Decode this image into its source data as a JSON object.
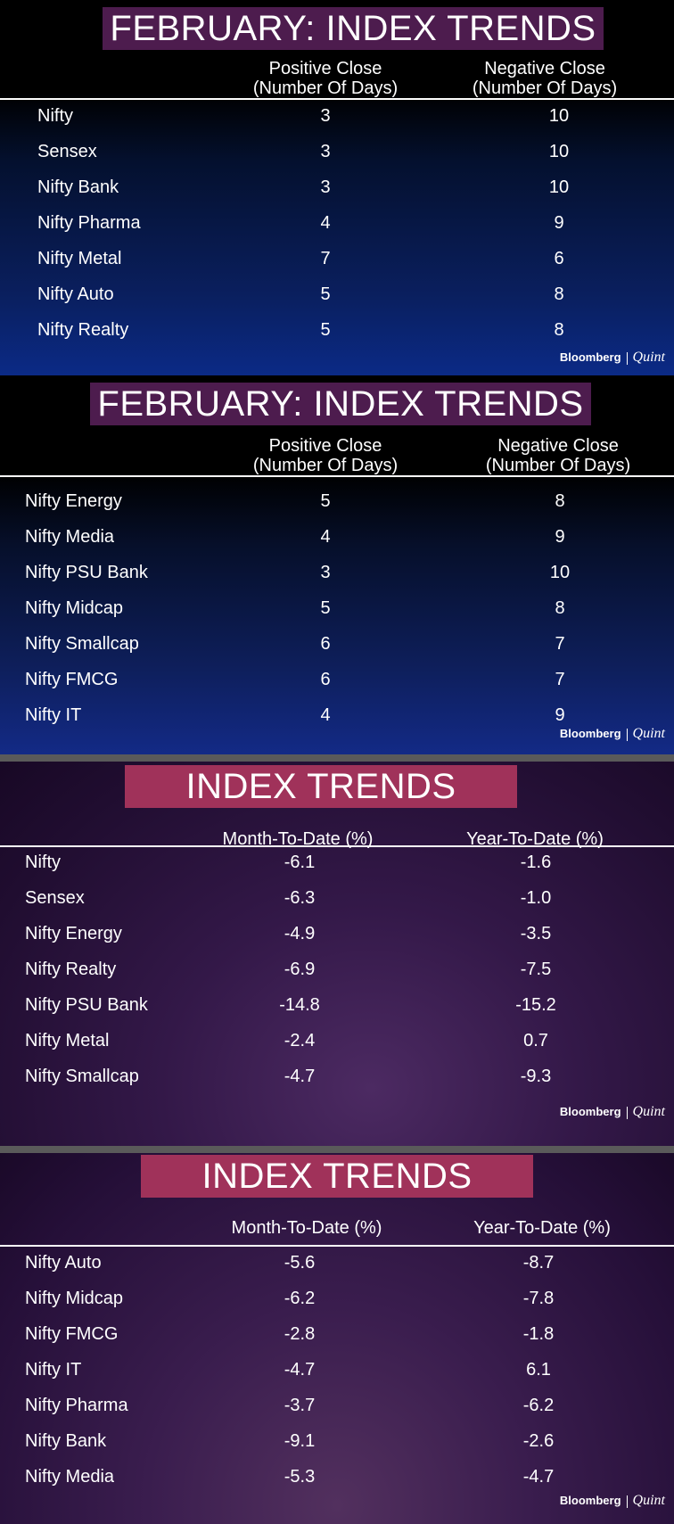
{
  "brand": {
    "name": "Bloomberg",
    "secondary": "Quint"
  },
  "panels": [
    {
      "title": "FEBRUARY: INDEX TRENDS",
      "col1": [
        "Positive Close",
        "(Number Of Days)"
      ],
      "col2": [
        "Negative Close",
        "(Number Of Days)"
      ],
      "rows": [
        {
          "name": "Nifty",
          "v1": "3",
          "v2": "10"
        },
        {
          "name": "Sensex",
          "v1": "3",
          "v2": "10"
        },
        {
          "name": "Nifty Bank",
          "v1": "3",
          "v2": "10"
        },
        {
          "name": "Nifty Pharma",
          "v1": "4",
          "v2": "9"
        },
        {
          "name": "Nifty Metal",
          "v1": "7",
          "v2": "6"
        },
        {
          "name": "Nifty Auto",
          "v1": "5",
          "v2": "8"
        },
        {
          "name": "Nifty Realty",
          "v1": "5",
          "v2": "8"
        }
      ]
    },
    {
      "title": "FEBRUARY: INDEX TRENDS",
      "col1": [
        "Positive Close",
        "(Number Of Days)"
      ],
      "col2": [
        "Negative Close",
        "(Number Of Days)"
      ],
      "rows": [
        {
          "name": "Nifty Energy",
          "v1": "5",
          "v2": "8"
        },
        {
          "name": "Nifty Media",
          "v1": "4",
          "v2": "9"
        },
        {
          "name": "Nifty PSU Bank",
          "v1": "3",
          "v2": "10"
        },
        {
          "name": "Nifty Midcap",
          "v1": "5",
          "v2": "8"
        },
        {
          "name": "Nifty Smallcap",
          "v1": "6",
          "v2": "7"
        },
        {
          "name": "Nifty FMCG",
          "v1": "6",
          "v2": "7"
        },
        {
          "name": "Nifty IT",
          "v1": "4",
          "v2": "9"
        }
      ]
    },
    {
      "title": "INDEX TRENDS",
      "col1": [
        "Month-To-Date (%)"
      ],
      "col2": [
        "Year-To-Date (%)"
      ],
      "rows": [
        {
          "name": "Nifty",
          "v1": "-6.1",
          "v2": "-1.6"
        },
        {
          "name": "Sensex",
          "v1": "-6.3",
          "v2": "-1.0"
        },
        {
          "name": "Nifty Energy",
          "v1": "-4.9",
          "v2": "-3.5"
        },
        {
          "name": "Nifty Realty",
          "v1": "-6.9",
          "v2": "-7.5"
        },
        {
          "name": "Nifty PSU Bank",
          "v1": "-14.8",
          "v2": "-15.2"
        },
        {
          "name": "Nifty Metal",
          "v1": "-2.4",
          "v2": "0.7"
        },
        {
          "name": "Nifty Smallcap",
          "v1": "-4.7",
          "v2": "-9.3"
        }
      ]
    },
    {
      "title": "INDEX TRENDS",
      "col1": [
        "Month-To-Date (%)"
      ],
      "col2": [
        "Year-To-Date (%)"
      ],
      "rows": [
        {
          "name": "Nifty Auto",
          "v1": "-5.6",
          "v2": "-8.7"
        },
        {
          "name": "Nifty Midcap",
          "v1": "-6.2",
          "v2": "-7.8"
        },
        {
          "name": "Nifty FMCG",
          "v1": "-2.8",
          "v2": "-1.8"
        },
        {
          "name": "Nifty IT",
          "v1": "-4.7",
          "v2": "6.1"
        },
        {
          "name": "Nifty Pharma",
          "v1": "-3.7",
          "v2": "-6.2"
        },
        {
          "name": "Nifty Bank",
          "v1": "-9.1",
          "v2": "-2.6"
        },
        {
          "name": "Nifty Media",
          "v1": "-5.3",
          "v2": "-4.7"
        }
      ]
    }
  ]
}
